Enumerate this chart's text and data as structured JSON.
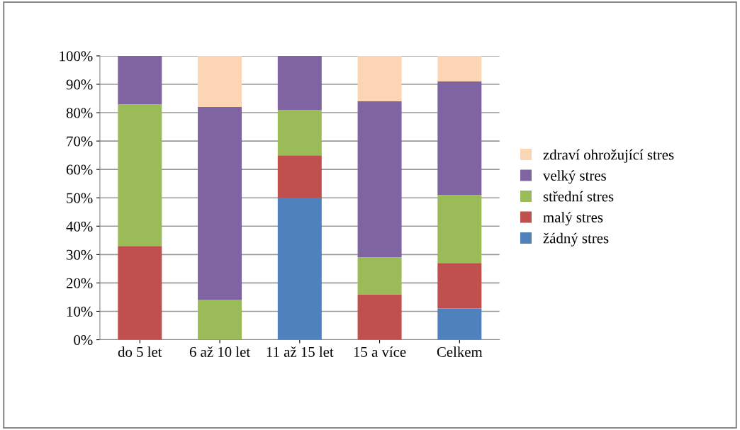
{
  "chart_data": {
    "type": "bar",
    "stacked": true,
    "categories": [
      "do 5 let",
      "6 až 10 let",
      "11 až 15 let",
      "15 a více",
      "Celkem"
    ],
    "series": [
      {
        "name": "žádný stres",
        "color": "#4f81bd",
        "values": [
          0,
          0,
          50,
          0,
          11
        ]
      },
      {
        "name": "malý stres",
        "color": "#c0504d",
        "values": [
          33,
          0,
          15,
          16,
          16
        ]
      },
      {
        "name": "střední stres",
        "color": "#9bbb59",
        "values": [
          50,
          14,
          16,
          13,
          24
        ]
      },
      {
        "name": "velký stres",
        "color": "#8064a2",
        "values": [
          17,
          68,
          19,
          55,
          40
        ]
      },
      {
        "name": "zdraví ohrožující stres",
        "color": "#fcd5b5",
        "values": [
          0,
          18,
          0,
          16,
          9
        ]
      }
    ],
    "ylim": [
      0,
      100
    ],
    "yticks": [
      {
        "value": 0,
        "label": "0%"
      },
      {
        "value": 10,
        "label": "10%"
      },
      {
        "value": 20,
        "label": "20%"
      },
      {
        "value": 30,
        "label": "30%"
      },
      {
        "value": 40,
        "label": "40%"
      },
      {
        "value": 50,
        "label": "50%"
      },
      {
        "value": 60,
        "label": "60%"
      },
      {
        "value": 70,
        "label": "70%"
      },
      {
        "value": 80,
        "label": "80%"
      },
      {
        "value": 90,
        "label": "90%"
      },
      {
        "value": 100,
        "label": "100%"
      }
    ],
    "grid": "y",
    "legend": "right"
  }
}
